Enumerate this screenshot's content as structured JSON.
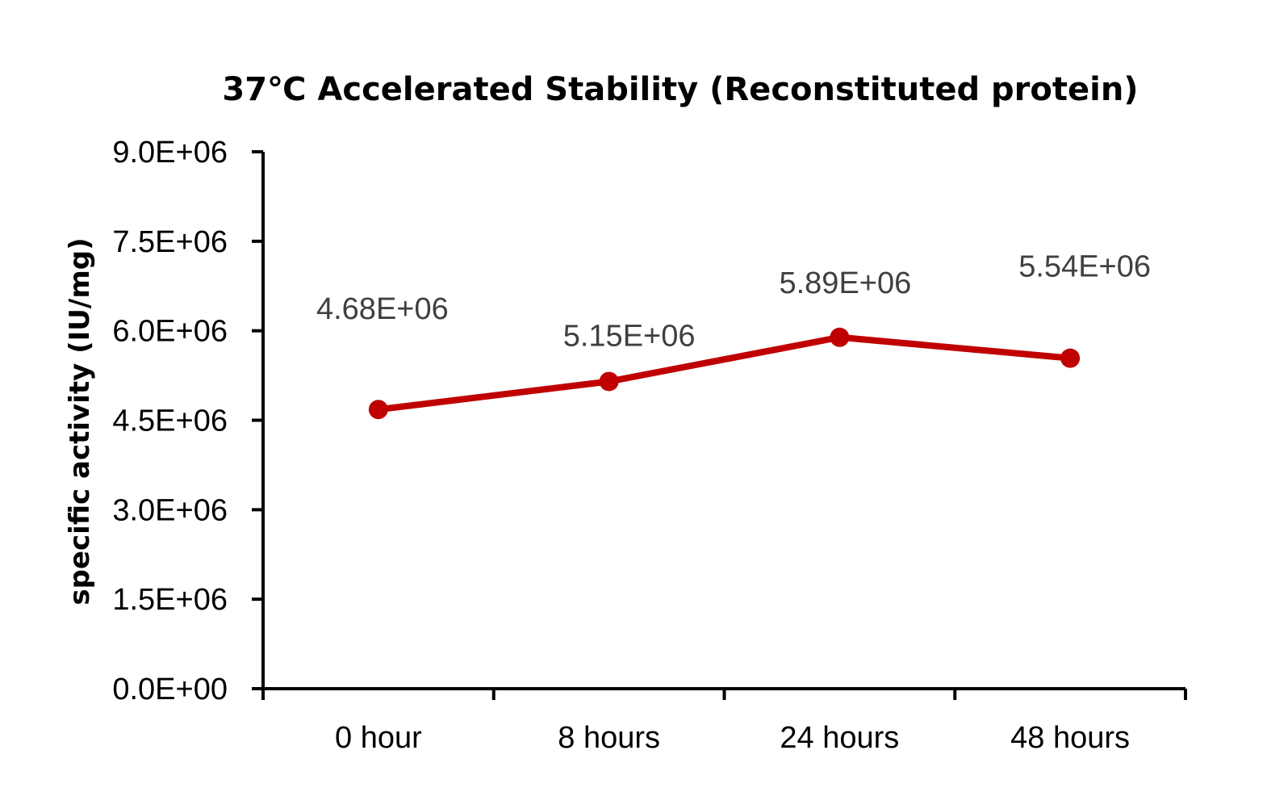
{
  "chart_data": {
    "type": "line",
    "title": "37℃ Accelerated  Stability (Reconstituted protein)",
    "xlabel": "",
    "ylabel": "specific activity (IU/mg)",
    "categories": [
      "0 hour",
      "8 hours",
      "24 hours",
      "48 hours"
    ],
    "series": [
      {
        "values": [
          4680000,
          5150000,
          5890000,
          5540000
        ],
        "data_labels": [
          "4.68E+06",
          "5.15E+06",
          "5.89E+06",
          "5.54E+06"
        ],
        "color": "#C00000"
      }
    ],
    "ylim": [
      0,
      9000000
    ],
    "yticks": [
      0,
      1500000,
      3000000,
      4500000,
      6000000,
      7500000,
      9000000
    ],
    "ytick_labels": [
      "0.0E+00",
      "1.5E+06",
      "3.0E+06",
      "4.5E+06",
      "6.0E+06",
      "7.5E+06",
      "9.0E+06"
    ],
    "grid": false,
    "legend": "none"
  }
}
